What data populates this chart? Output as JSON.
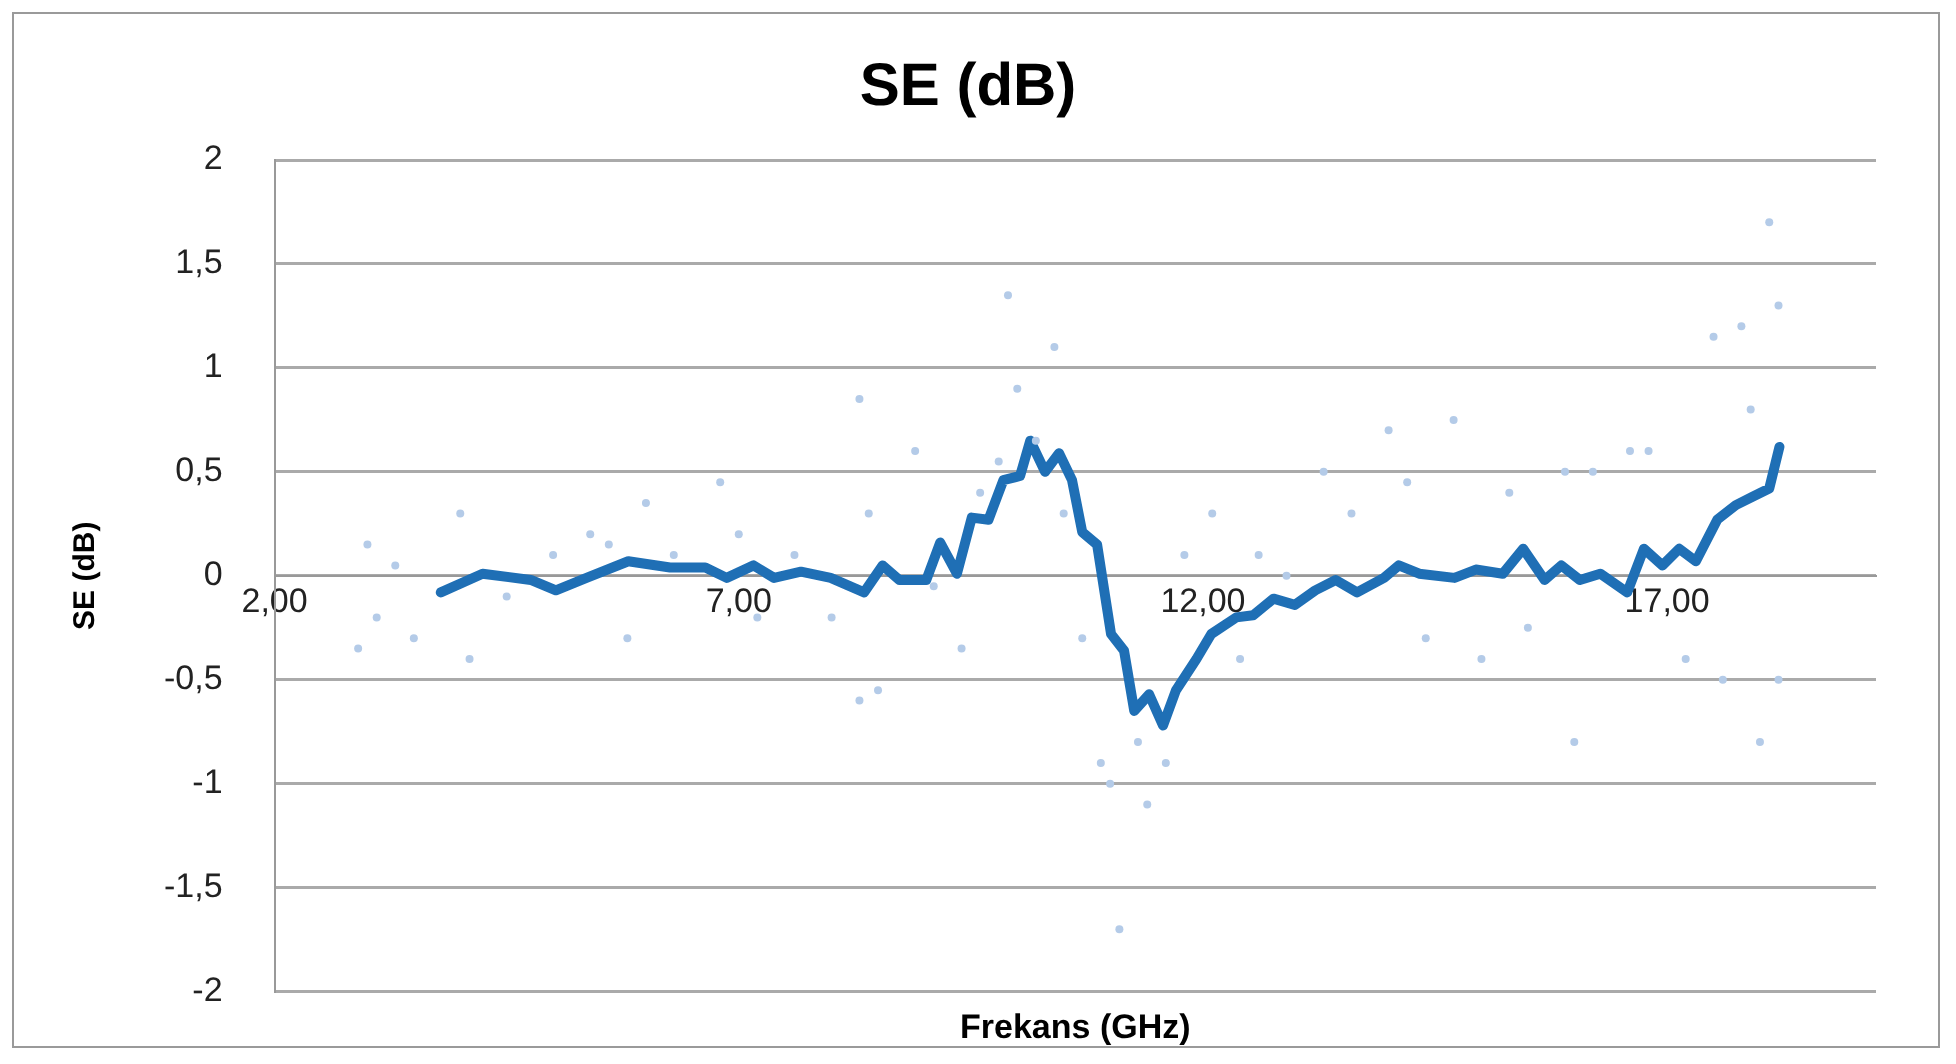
{
  "chart_data": {
    "type": "line",
    "title": "SE (dB)",
    "xlabel": "Frekans (GHz)",
    "ylabel": "SE (dB)",
    "xlim": [
      2,
      19.25
    ],
    "xticks": [
      {
        "value": 2,
        "label": "2,00"
      },
      {
        "value": 7,
        "label": "7,00"
      },
      {
        "value": 12,
        "label": "12,00"
      },
      {
        "value": 17,
        "label": "17,00"
      }
    ],
    "ylim": [
      -2,
      2
    ],
    "yticks": [
      -2,
      {
        "value": -1.5,
        "label": "-1,5"
      },
      -1,
      {
        "value": -0.5,
        "label": "-0,5"
      },
      0,
      {
        "value": 0.5,
        "label": "0,5"
      },
      1,
      {
        "value": 1.5,
        "label": "1,5"
      },
      2
    ],
    "grid": "y",
    "legend": false,
    "series": [
      {
        "type": "scatter",
        "color": "#b4cbe8",
        "marker": "circle",
        "x": [
          2.9,
          3.0,
          3.1,
          3.3,
          3.5,
          4.0,
          4.1,
          4.5,
          5.0,
          5.4,
          5.6,
          5.8,
          6.0,
          6.3,
          6.8,
          7.0,
          7.2,
          7.6,
          8.0,
          8.3,
          8.3,
          8.4,
          8.5,
          8.9,
          9.1,
          9.4,
          9.6,
          9.8,
          9.9,
          10.0,
          10.2,
          10.4,
          10.5,
          10.7,
          10.9,
          11.0,
          11.1,
          11.3,
          11.4,
          11.6,
          11.8,
          12.1,
          12.4,
          12.6,
          12.9,
          13.3,
          13.6,
          14.0,
          14.2,
          14.4,
          14.7,
          15.0,
          15.3,
          15.5,
          15.9,
          16.0,
          16.2,
          16.6,
          16.8,
          17.2,
          17.5,
          17.6,
          17.8,
          17.9,
          18.0,
          18.1,
          18.2,
          18.2
        ],
        "values": [
          -0.35,
          0.15,
          -0.2,
          0.05,
          -0.3,
          0.3,
          -0.4,
          -0.1,
          0.1,
          0.2,
          0.15,
          -0.3,
          0.35,
          0.1,
          0.45,
          0.2,
          -0.2,
          0.1,
          -0.2,
          0.85,
          -0.6,
          0.3,
          -0.55,
          0.6,
          -0.05,
          -0.35,
          0.4,
          0.55,
          1.35,
          0.9,
          0.65,
          1.1,
          0.3,
          -0.3,
          -0.9,
          -1.0,
          -1.7,
          -0.8,
          -1.1,
          -0.9,
          0.1,
          0.3,
          -0.4,
          0.1,
          0.0,
          0.5,
          0.3,
          0.7,
          0.45,
          -0.3,
          0.75,
          -0.4,
          0.4,
          -0.25,
          0.5,
          -0.8,
          0.5,
          0.6,
          0.6,
          -0.4,
          1.15,
          -0.5,
          1.2,
          0.8,
          -0.8,
          1.7,
          1.3,
          -0.5
        ]
      },
      {
        "color": "#1f6fb5",
        "marker": "none",
        "line_style": "solid",
        "x": [
          3.79,
          4.24,
          4.76,
          5.03,
          5.36,
          5.81,
          6.26,
          6.64,
          6.87,
          7.16,
          7.38,
          7.67,
          7.99,
          8.35,
          8.55,
          8.73,
          9.02,
          9.17,
          9.35,
          9.51,
          9.69,
          9.85,
          10.03,
          10.14,
          10.3,
          10.45,
          10.59,
          10.7,
          10.86,
          11.01,
          11.15,
          11.26,
          11.42,
          11.57,
          11.71,
          11.93,
          12.09,
          12.36,
          12.54,
          12.76,
          12.99,
          13.21,
          13.43,
          13.66,
          13.95,
          14.11,
          14.33,
          14.71,
          14.94,
          15.23,
          15.45,
          15.68,
          15.86,
          16.06,
          16.28,
          16.57,
          16.75,
          16.95,
          17.13,
          17.31,
          17.54,
          17.74,
          17.92,
          18.1,
          18.21
        ],
        "values": [
          -0.08,
          0.01,
          -0.02,
          -0.07,
          -0.01,
          0.07,
          0.04,
          0.04,
          -0.01,
          0.05,
          -0.01,
          0.02,
          -0.01,
          -0.08,
          0.05,
          -0.02,
          -0.02,
          0.16,
          0.01,
          0.28,
          0.27,
          0.46,
          0.48,
          0.65,
          0.5,
          0.59,
          0.46,
          0.21,
          0.15,
          -0.28,
          -0.36,
          -0.65,
          -0.57,
          -0.72,
          -0.55,
          -0.4,
          -0.28,
          -0.2,
          -0.19,
          -0.11,
          -0.14,
          -0.07,
          -0.02,
          -0.08,
          -0.01,
          0.05,
          0.01,
          -0.01,
          0.03,
          0.01,
          0.13,
          -0.02,
          0.05,
          -0.02,
          0.01,
          -0.08,
          0.13,
          0.05,
          0.13,
          0.07,
          0.27,
          0.34,
          0.38,
          0.42,
          0.62
        ]
      }
    ]
  }
}
